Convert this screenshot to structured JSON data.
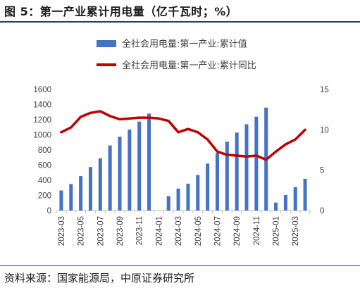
{
  "header": {
    "title": "图 5：第一产业累计用电量（亿千瓦时；%）"
  },
  "footer": {
    "source": "资料来源：国家能源局，中原证券研究所"
  },
  "colors": {
    "bar": "#4472c4",
    "line": "#c00000",
    "rule": "#1f3c6e",
    "axis": "#bfbfbf",
    "text": "#404040"
  },
  "chart_data": {
    "type": "bar",
    "categories": [
      "2023-03",
      "2023-04",
      "2023-05",
      "2023-06",
      "2023-07",
      "2023-08",
      "2023-09",
      "2023-10",
      "2023-11",
      "2023-12",
      "2024-01",
      "2024-02",
      "2024-03",
      "2024-04",
      "2024-05",
      "2024-06",
      "2024-07",
      "2024-08",
      "2024-09",
      "2024-10",
      "2024-11",
      "2024-12",
      "2025-01",
      "2025-02",
      "2025-03",
      "2025-04"
    ],
    "x_tick_labels": [
      "2023-03",
      "2023-05",
      "2023-07",
      "2023-09",
      "2023-11",
      "2024-01",
      "2024-03",
      "2024-05",
      "2024-07",
      "2024-09",
      "2024-11",
      "2025-01",
      "2025-03"
    ],
    "series": [
      {
        "name": "全社会用电量:第一产业:累计值",
        "type": "bar",
        "axis": "left",
        "values": [
          265,
          350,
          455,
          575,
          690,
          860,
          975,
          1070,
          1175,
          1280,
          null,
          190,
          290,
          355,
          470,
          620,
          760,
          910,
          1030,
          1140,
          1240,
          1360,
          105,
          205,
          310,
          420
        ]
      },
      {
        "name": "全社会用电量:第一产业:累计同比",
        "type": "line",
        "axis": "right",
        "values": [
          9.7,
          10.3,
          11.6,
          12.1,
          12.3,
          11.7,
          11.3,
          11.4,
          11.5,
          11.5,
          11.4,
          11.1,
          9.7,
          10.1,
          9.7,
          8.8,
          7.3,
          6.9,
          6.8,
          6.7,
          6.8,
          6.3,
          7.3,
          8.2,
          8.8,
          10.0
        ]
      }
    ],
    "y_left": {
      "lim": [
        0,
        1600
      ],
      "ticks": [
        0,
        200,
        400,
        600,
        800,
        1000,
        1200,
        1400,
        1600
      ]
    },
    "y_right": {
      "lim": [
        0,
        15
      ],
      "ticks": [
        0,
        5,
        10,
        15
      ]
    },
    "grid": false,
    "legend_position": "top-center"
  }
}
